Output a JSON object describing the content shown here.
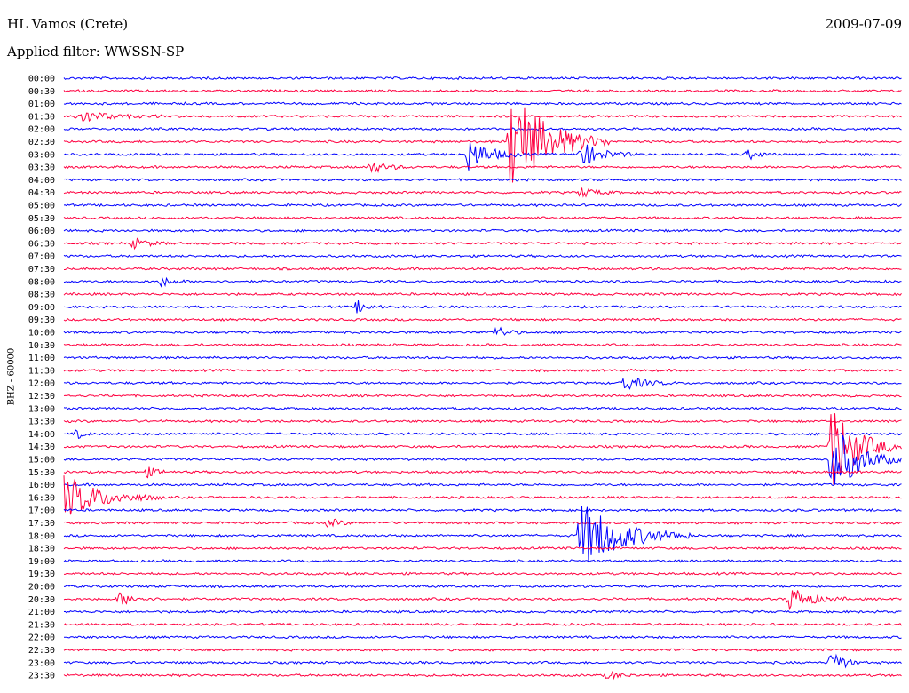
{
  "header": {
    "station": "HL Vamos (Crete)",
    "date": "2009-07-09",
    "filter": "Applied filter: WWSSN-SP"
  },
  "chart_data": {
    "type": "line",
    "title": "HL Vamos (Crete)",
    "subtitle": "Applied filter: WWSSN-SP",
    "ylabel": "BHZ - 60000",
    "xlabel": "",
    "row_labels": [
      "00:00",
      "00:30",
      "01:00",
      "01:30",
      "02:00",
      "02:30",
      "03:00",
      "03:30",
      "04:00",
      "04:30",
      "05:00",
      "05:30",
      "06:00",
      "06:30",
      "07:00",
      "07:30",
      "08:00",
      "08:30",
      "09:00",
      "09:30",
      "10:00",
      "10:30",
      "11:00",
      "11:30",
      "12:00",
      "12:30",
      "13:00",
      "13:30",
      "14:00",
      "14:30",
      "15:00",
      "15:30",
      "16:00",
      "16:30",
      "17:00",
      "17:30",
      "18:00",
      "18:30",
      "19:00",
      "19:30",
      "20:00",
      "20:30",
      "21:00",
      "21:30",
      "22:00",
      "22:30",
      "23:00",
      "23:30"
    ],
    "minutes_per_row": 30,
    "colors": [
      "#0000ff",
      "#ff0040"
    ],
    "events": [
      {
        "row": 3,
        "minute": 0.5,
        "amplitude": 0.5,
        "duration": 3
      },
      {
        "row": 5,
        "minute": 16.0,
        "amplitude": 4.5,
        "duration": 3.5
      },
      {
        "row": 6,
        "minute": 14.5,
        "amplitude": 1.3,
        "duration": 2
      },
      {
        "row": 6,
        "minute": 18.5,
        "amplitude": 1.0,
        "duration": 2
      },
      {
        "row": 6,
        "minute": 24.5,
        "amplitude": 0.4,
        "duration": 1
      },
      {
        "row": 7,
        "minute": 11.0,
        "amplitude": 0.5,
        "duration": 1.5
      },
      {
        "row": 9,
        "minute": 18.5,
        "amplitude": 0.4,
        "duration": 1.5
      },
      {
        "row": 13,
        "minute": 2.5,
        "amplitude": 0.4,
        "duration": 1.5
      },
      {
        "row": 16,
        "minute": 3.5,
        "amplitude": 0.4,
        "duration": 1
      },
      {
        "row": 18,
        "minute": 10.5,
        "amplitude": 0.5,
        "duration": 1
      },
      {
        "row": 20,
        "minute": 15.5,
        "amplitude": 0.5,
        "duration": 1
      },
      {
        "row": 24,
        "minute": 20.0,
        "amplitude": 0.6,
        "duration": 2
      },
      {
        "row": 28,
        "minute": 0.5,
        "amplitude": 0.4,
        "duration": 0.5
      },
      {
        "row": 29,
        "minute": 27.5,
        "amplitude": 3.5,
        "duration": 2.5
      },
      {
        "row": 30,
        "minute": 27.5,
        "amplitude": 3.0,
        "duration": 2.5
      },
      {
        "row": 31,
        "minute": 3.0,
        "amplitude": 0.4,
        "duration": 1
      },
      {
        "row": 33,
        "minute": 0.0,
        "amplitude": 1.8,
        "duration": 3.5
      },
      {
        "row": 35,
        "minute": 9.5,
        "amplitude": 0.4,
        "duration": 1
      },
      {
        "row": 36,
        "minute": 18.5,
        "amplitude": 2.8,
        "duration": 4
      },
      {
        "row": 41,
        "minute": 2.0,
        "amplitude": 0.5,
        "duration": 1.5
      },
      {
        "row": 41,
        "minute": 26.0,
        "amplitude": 1.0,
        "duration": 2
      },
      {
        "row": 46,
        "minute": 27.5,
        "amplitude": 1.2,
        "duration": 1
      },
      {
        "row": 47,
        "minute": 19.5,
        "amplitude": 0.4,
        "duration": 1
      }
    ]
  }
}
